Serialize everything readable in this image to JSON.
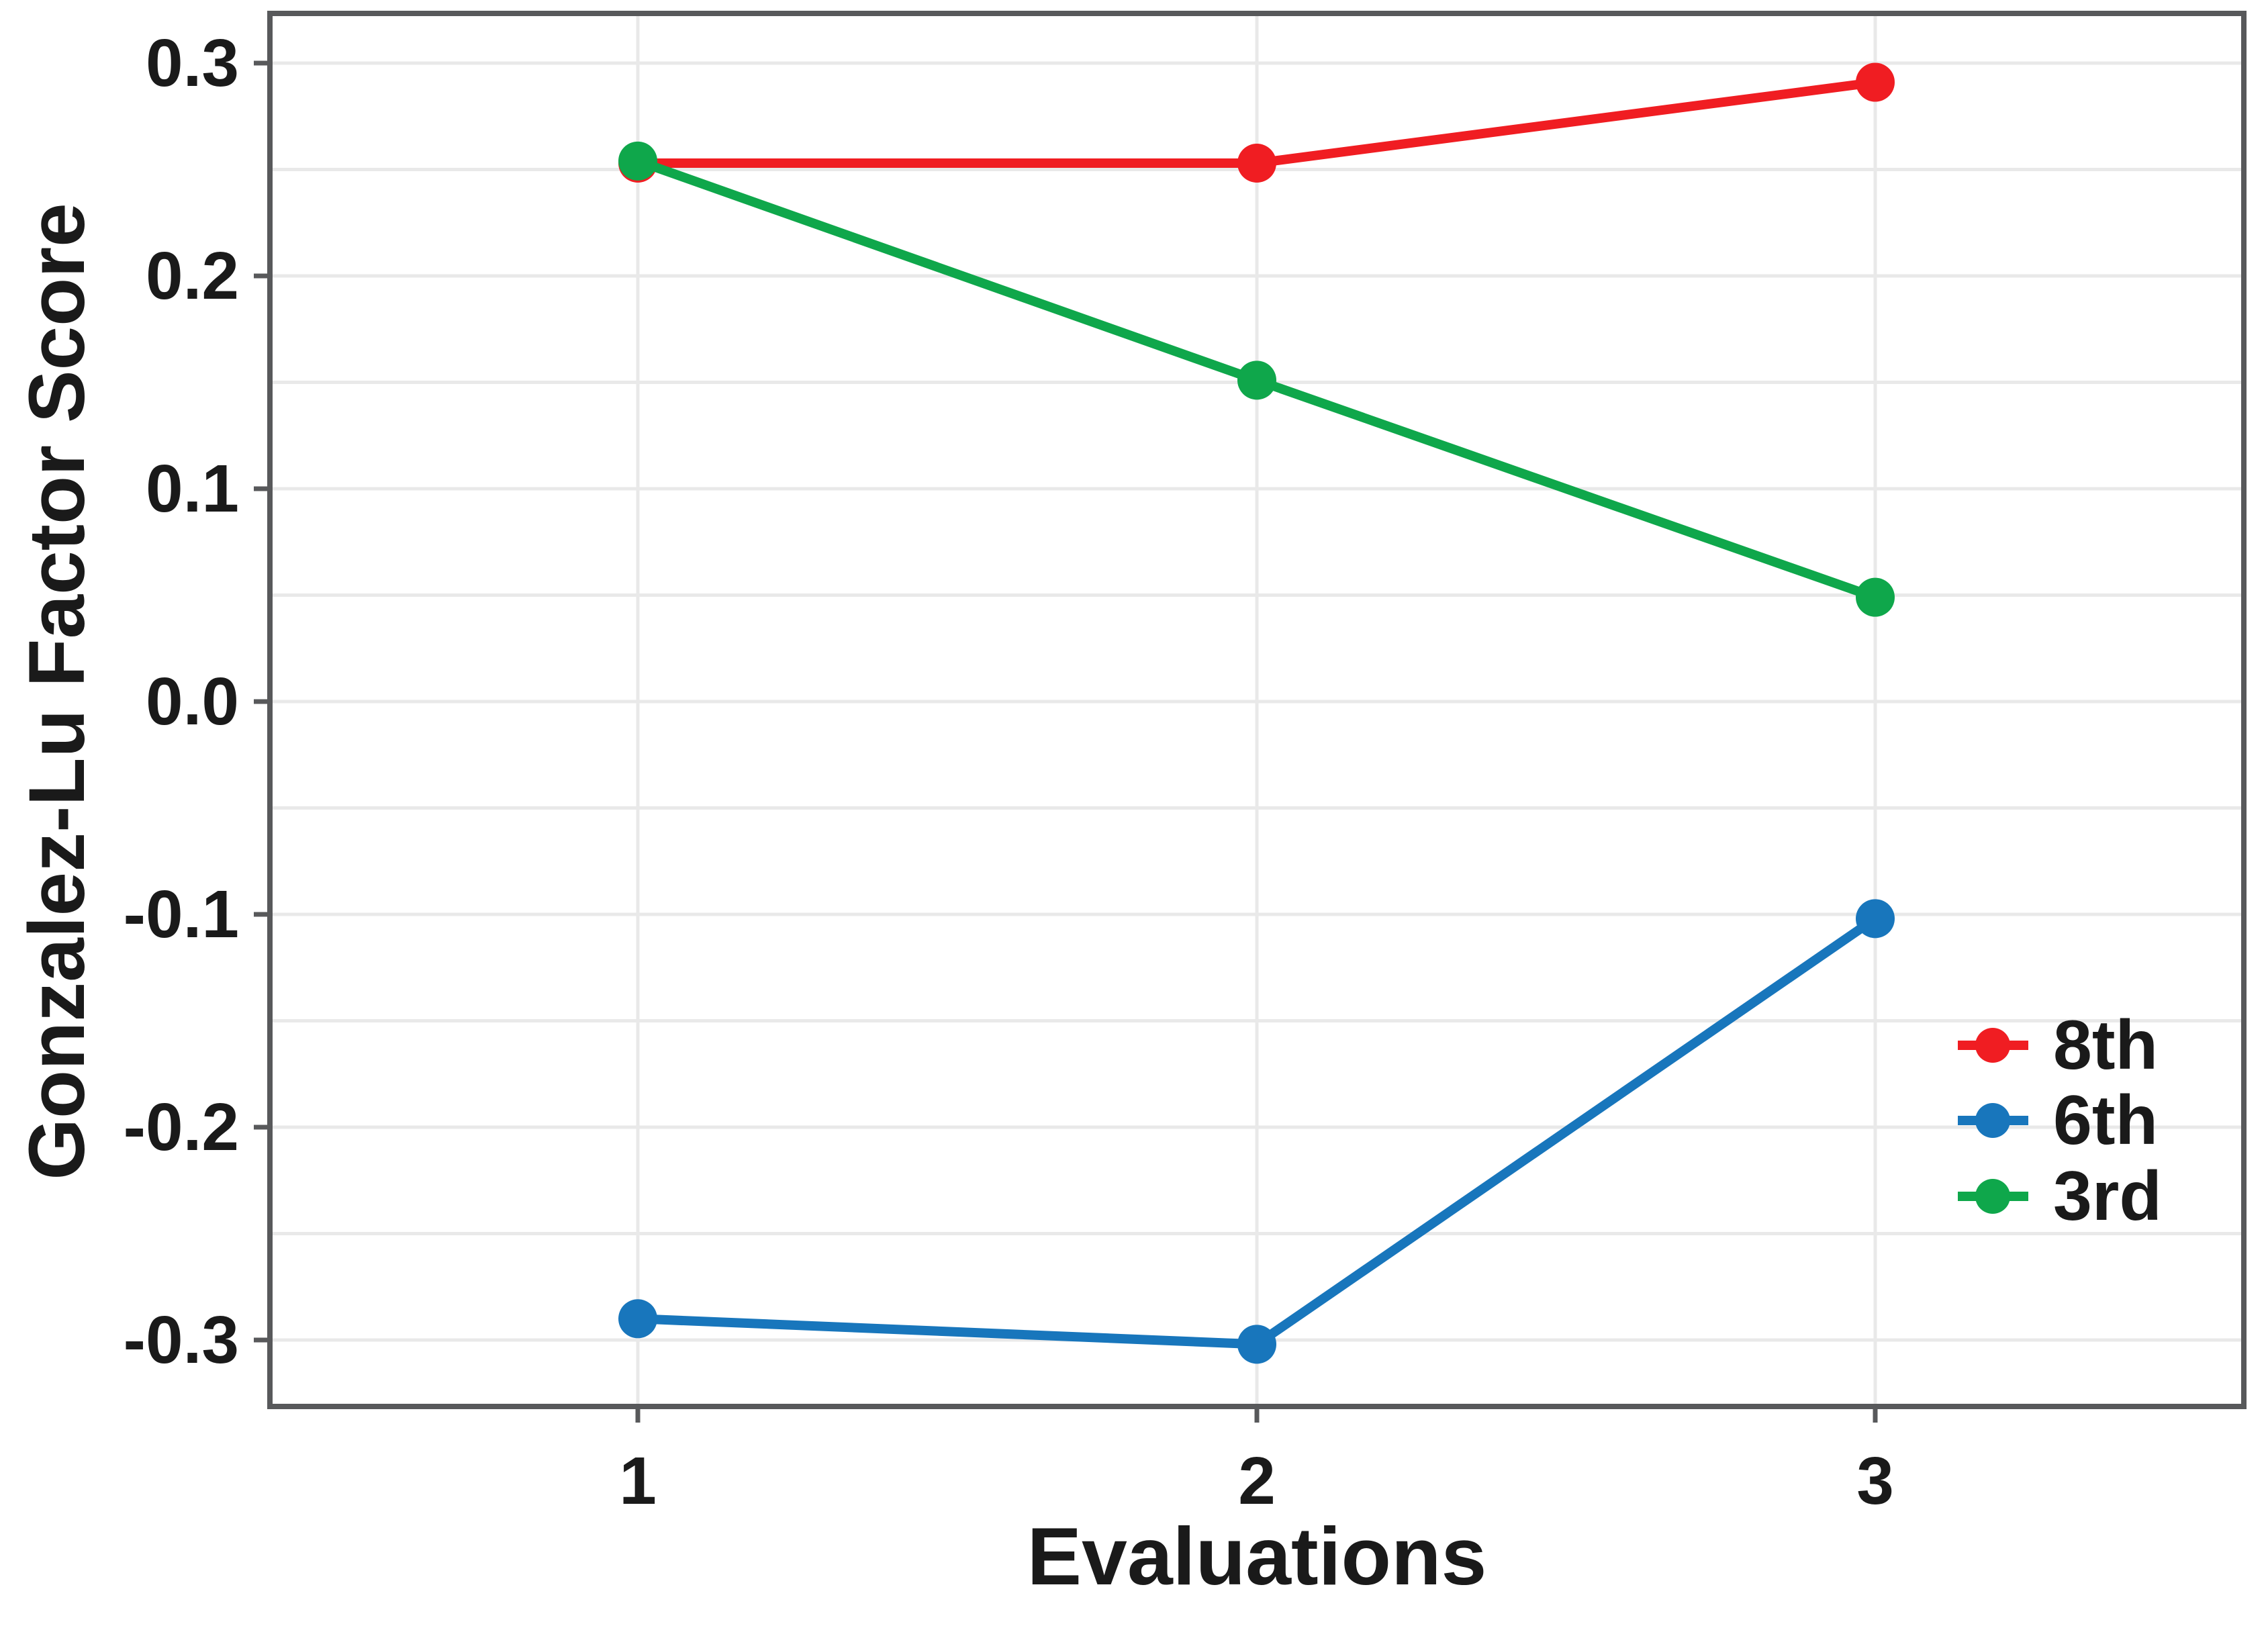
{
  "chart_data": {
    "type": "line",
    "title": "",
    "xlabel": "Evaluations",
    "ylabel": "Gonzalez-Lu Factor Score",
    "categories": [
      1,
      2,
      3
    ],
    "x_tick_labels": [
      "1",
      "2",
      "3"
    ],
    "series": [
      {
        "name": "8th",
        "color": "#F01D22",
        "values": [
          0.253,
          0.253,
          0.291
        ]
      },
      {
        "name": "6th",
        "color": "#1876BC",
        "values": [
          -0.29,
          -0.302,
          -0.102
        ]
      },
      {
        "name": "3rd",
        "color": "#0FA74B",
        "values": [
          0.254,
          0.151,
          0.049
        ]
      }
    ],
    "legend": {
      "position": "inside-right",
      "entries": [
        "8th",
        "6th",
        "3rd"
      ]
    },
    "ylim": [
      -0.335,
      0.323
    ],
    "y_ticks": [
      0.3,
      0.2,
      0.1,
      0.0,
      -0.1,
      -0.2,
      -0.3
    ],
    "y_tick_labels": [
      "0.3",
      "0.2",
      "0.1",
      "0.0",
      "-0.1",
      "-0.2",
      "-0.3"
    ],
    "y_gridlines": [
      0.3,
      0.25,
      0.2,
      0.15,
      0.1,
      0.05,
      0.0,
      -0.05,
      -0.1,
      -0.15,
      -0.2,
      -0.25,
      -0.3
    ],
    "x_gridlines": [
      1,
      2,
      3
    ],
    "grid": true,
    "marker": "circle",
    "colors": {
      "axis": "#58595B",
      "gridline": "#E9E9E9",
      "text": "#1A1A1A",
      "background": "#FFFFFF"
    }
  }
}
